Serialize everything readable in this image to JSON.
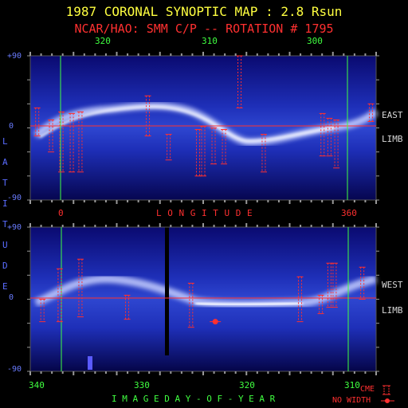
{
  "title": "1987 CORONAL SYNOPTIC MAP : 2.8 Rsun",
  "subtitle": "NCAR/HAO: SMM C/P -- ROTATION # 1795",
  "top_axis_ticks": [
    "320",
    "310",
    "300"
  ],
  "longitude_ticks": [
    "0",
    "360"
  ],
  "longitude_label": "L O N G I T U D E",
  "bottom_axis_ticks": [
    "340",
    "330",
    "320",
    "310"
  ],
  "bottom_axis_label": "I M A G E   D A Y - O F - Y E A R",
  "lat_ticks_top": [
    "+90",
    "0",
    "-90"
  ],
  "lat_ticks_bottom": [
    "+90",
    "0",
    "-90"
  ],
  "vertical_label": [
    "L",
    "A",
    "T",
    "I",
    "T",
    "U",
    "D",
    "E"
  ],
  "right_labels": {
    "east": "EAST",
    "east_limb": "LIMB",
    "west": "WEST",
    "west_limb": "LIMB"
  },
  "legend": {
    "cme": "CME",
    "no_width": "NO WIDTH"
  },
  "colors": {
    "title": "#ffff40",
    "subtitle": "#ff3030",
    "grid_green": "#40ff40",
    "cme_red": "#ff3030",
    "axis_blue": "#6a7cff"
  },
  "chart_data": [
    {
      "type": "heatmap",
      "panel": "east-limb",
      "xlabel": "LONGITUDE",
      "ylabel": "LATITUDE",
      "ylim": [
        -90,
        90
      ],
      "x_ticks": [
        "320",
        "310",
        "300"
      ],
      "y_ticks": [
        "+90",
        "0",
        "-90"
      ],
      "cme_marks": [
        {
          "x": 0.02,
          "lo": -10,
          "hi": 25
        },
        {
          "x": 0.06,
          "lo": -30,
          "hi": 10
        },
        {
          "x": 0.09,
          "lo": -55,
          "hi": 20
        },
        {
          "x": 0.12,
          "lo": -55,
          "hi": 18
        },
        {
          "x": 0.145,
          "lo": -55,
          "hi": 20
        },
        {
          "x": 0.34,
          "lo": -10,
          "hi": 40
        },
        {
          "x": 0.4,
          "lo": -40,
          "hi": -8
        },
        {
          "x": 0.485,
          "lo": -60,
          "hi": -2
        },
        {
          "x": 0.5,
          "lo": -60,
          "hi": 2
        },
        {
          "x": 0.53,
          "lo": -45,
          "hi": 0
        },
        {
          "x": 0.56,
          "lo": -45,
          "hi": -2
        },
        {
          "x": 0.605,
          "lo": 25,
          "hi": 90
        },
        {
          "x": 0.675,
          "lo": -55,
          "hi": -8
        },
        {
          "x": 0.845,
          "lo": -35,
          "hi": 18
        },
        {
          "x": 0.865,
          "lo": -35,
          "hi": 12
        },
        {
          "x": 0.885,
          "lo": -50,
          "hi": 10
        },
        {
          "x": 0.985,
          "lo": 8,
          "hi": 30
        }
      ]
    },
    {
      "type": "heatmap",
      "panel": "west-limb",
      "xlabel": "IMAGE DAY-OF-YEAR",
      "ylabel": "LATITUDE",
      "ylim": [
        -90,
        90
      ],
      "x_ticks": [
        "340",
        "330",
        "320",
        "310"
      ],
      "y_ticks": [
        "+90",
        "0",
        "-90"
      ],
      "cme_marks": [
        {
          "x": 0.035,
          "lo": -28,
          "hi": 0
        },
        {
          "x": 0.085,
          "lo": -28,
          "hi": 38
        },
        {
          "x": 0.145,
          "lo": -22,
          "hi": 50
        },
        {
          "x": 0.28,
          "lo": -25,
          "hi": 5
        },
        {
          "x": 0.465,
          "lo": -35,
          "hi": 20
        },
        {
          "x": 0.78,
          "lo": -28,
          "hi": 28
        },
        {
          "x": 0.84,
          "lo": -18,
          "hi": 5
        },
        {
          "x": 0.865,
          "lo": -10,
          "hi": 45
        },
        {
          "x": 0.88,
          "lo": -10,
          "hi": 45
        },
        {
          "x": 0.96,
          "lo": 0,
          "hi": 40
        }
      ],
      "no_width_marks": [
        {
          "x": 0.535,
          "lat": -28
        }
      ]
    }
  ]
}
